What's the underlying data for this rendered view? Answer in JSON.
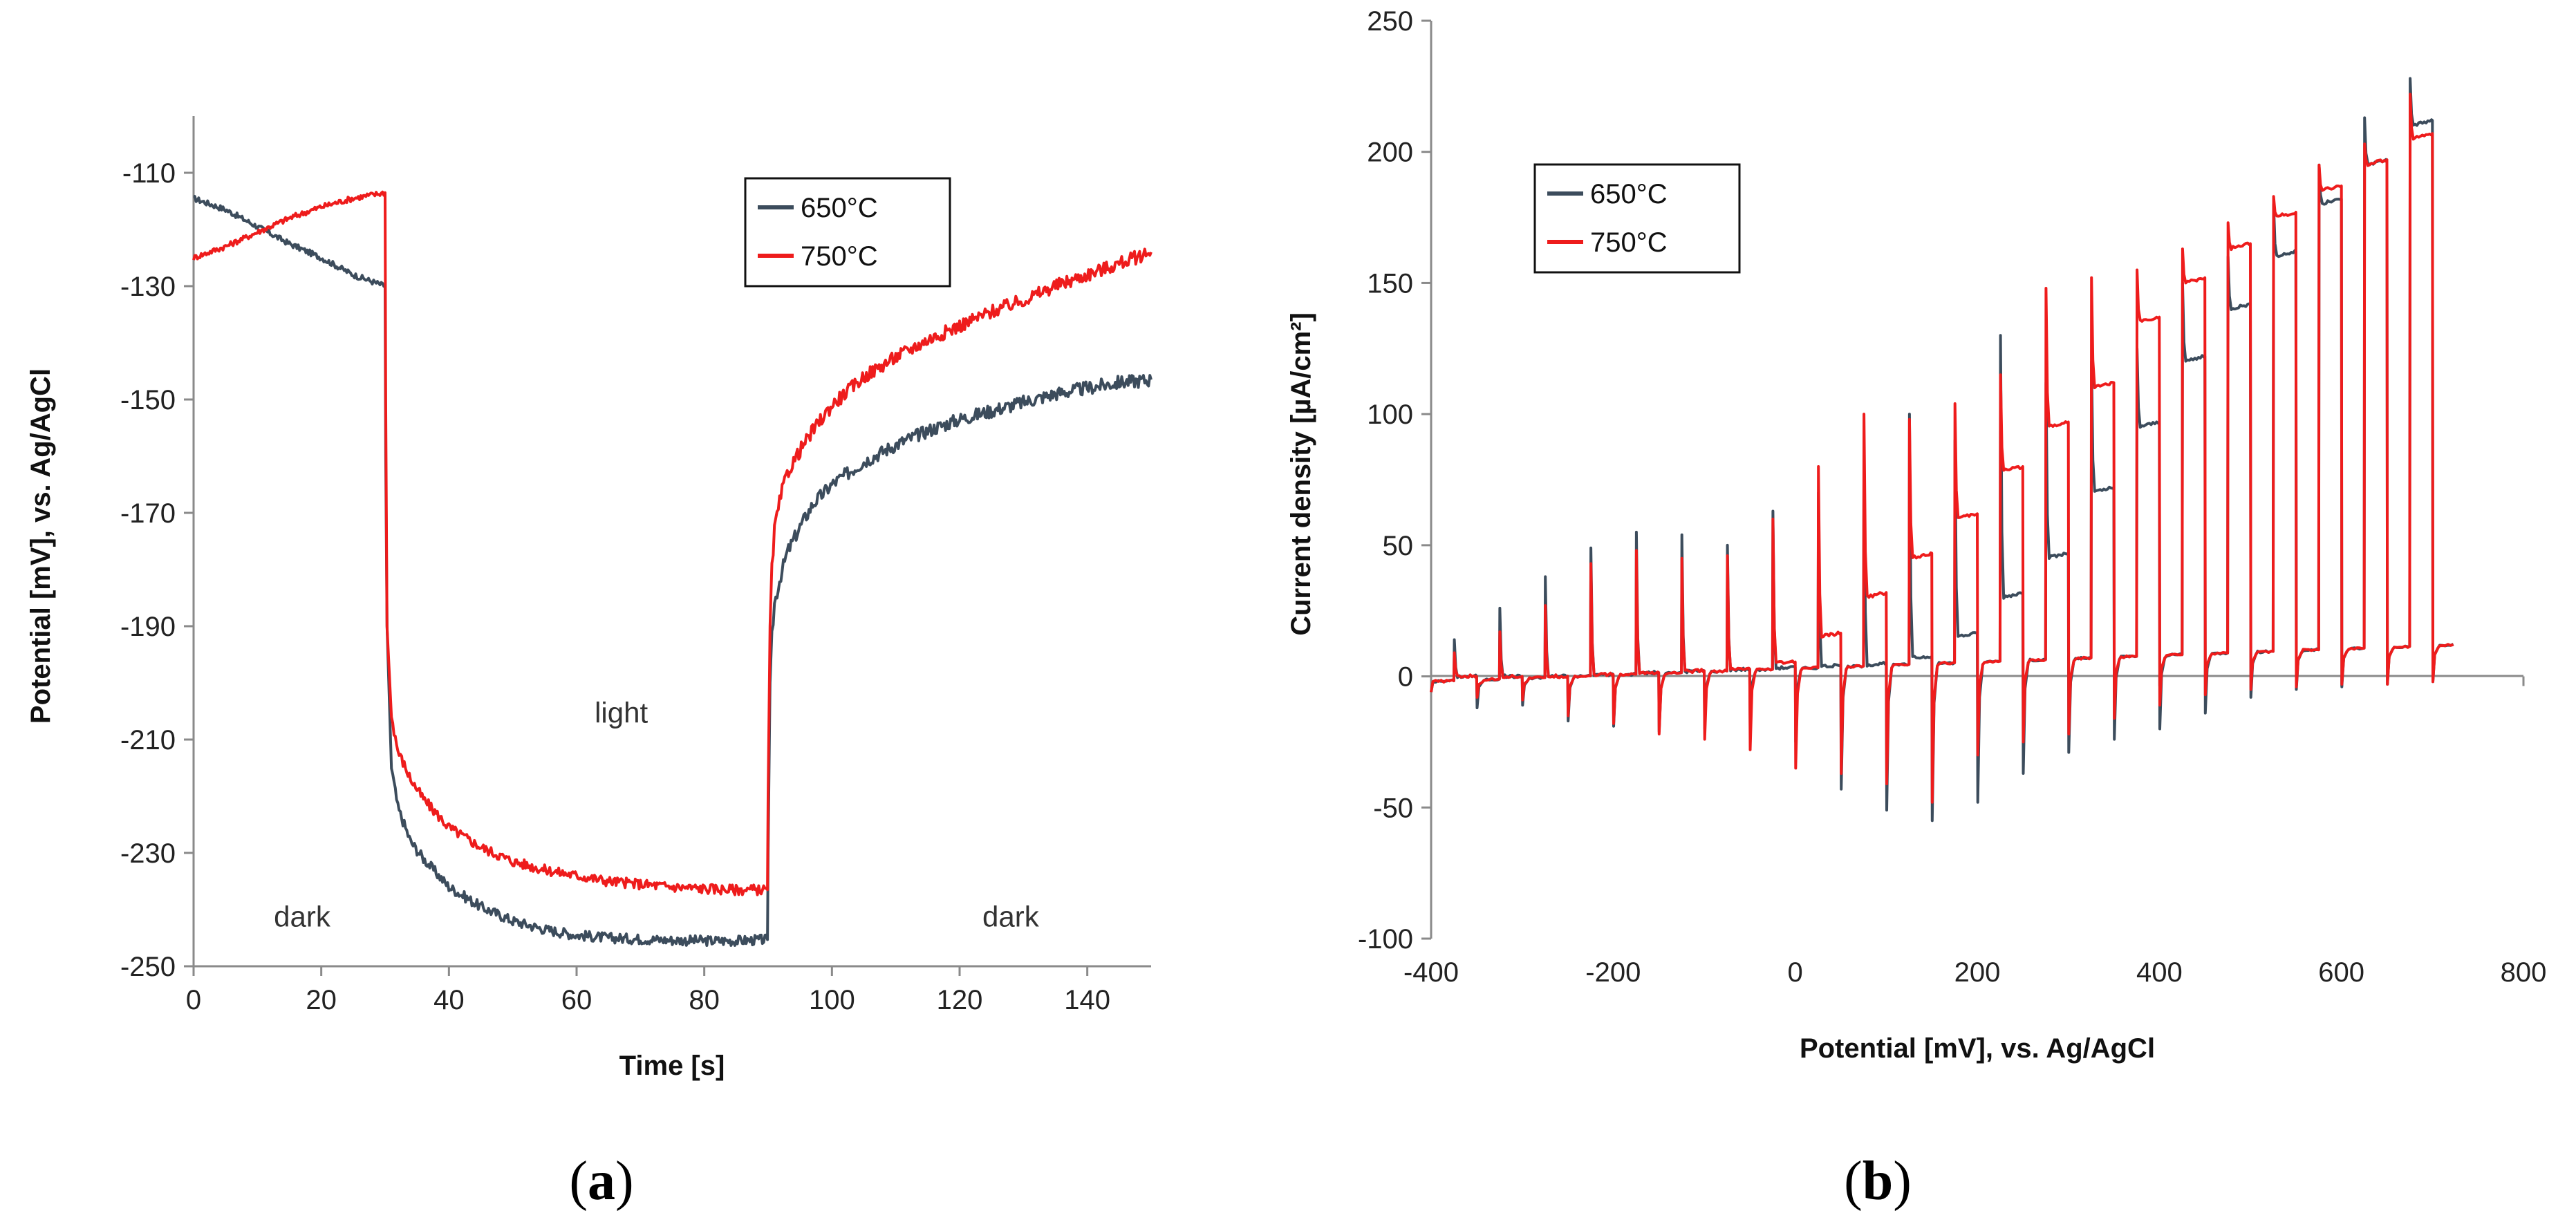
{
  "colors": {
    "series_650": "#3c4c5c",
    "series_750": "#ee1c1c",
    "axis": "#8a8a8a"
  },
  "chart_data": [
    {
      "id": "a",
      "type": "line",
      "panel_label": {
        "open": "(",
        "letter": "a",
        "close": ")"
      },
      "xlabel": "Time [s]",
      "ylabel": "Potential [mV], vs. Ag/AgCl",
      "xlim": [
        0,
        150
      ],
      "ylim": [
        -250,
        -100
      ],
      "xticks": [
        "0",
        "20",
        "40",
        "60",
        "80",
        "100",
        "120",
        "140"
      ],
      "xtick_values": [
        0,
        20,
        40,
        60,
        80,
        100,
        120,
        140
      ],
      "yticks": [
        "-110",
        "-130",
        "-150",
        "-170",
        "-190",
        "-210",
        "-230",
        "-250"
      ],
      "ytick_values": [
        -110,
        -130,
        -150,
        -170,
        -190,
        -210,
        -230,
        -250
      ],
      "grid": false,
      "legend_position": "top-right",
      "legend": [
        "650°C",
        "750°C"
      ],
      "annotations": [
        {
          "text": "dark",
          "x": 17,
          "y": -243
        },
        {
          "text": "light",
          "x": 67,
          "y": -207
        },
        {
          "text": "dark",
          "x": 128,
          "y": -243
        }
      ],
      "series": [
        {
          "name": "650°C",
          "x": [
            0,
            5,
            10,
            15,
            20,
            25,
            30,
            30.1,
            30.3,
            31,
            32,
            34,
            36,
            38,
            40,
            45,
            50,
            55,
            60,
            65,
            70,
            75,
            80,
            85,
            89.9,
            90,
            90.3,
            90.6,
            91,
            92,
            93,
            95,
            97,
            100,
            105,
            110,
            115,
            120,
            125,
            130,
            135,
            140,
            145,
            150
          ],
          "y": [
            -114.5,
            -116.5,
            -119.5,
            -122.5,
            -125,
            -128,
            -130,
            -160,
            -190,
            -215,
            -222,
            -228,
            -231,
            -233.5,
            -236,
            -239.5,
            -242,
            -243.5,
            -244.5,
            -245,
            -245.2,
            -245.4,
            -245.5,
            -245.5,
            -245.3,
            -230,
            -200,
            -192,
            -186,
            -181,
            -177,
            -172.5,
            -168.5,
            -165,
            -161,
            -158,
            -155.5,
            -153.5,
            -152,
            -150.5,
            -149,
            -148,
            -147,
            -146.5
          ]
        },
        {
          "name": "750°C",
          "x": [
            0,
            5,
            10,
            15,
            20,
            25,
            30,
            30.1,
            30.3,
            31,
            32,
            34,
            36,
            38,
            40,
            45,
            50,
            55,
            60,
            65,
            70,
            75,
            80,
            85,
            89.9,
            90,
            90.3,
            90.6,
            91,
            92,
            93,
            95,
            97,
            100,
            105,
            110,
            115,
            120,
            125,
            130,
            135,
            140,
            145,
            150
          ],
          "y": [
            -125,
            -123,
            -120.5,
            -118,
            -116,
            -114.5,
            -113.5,
            -150,
            -190,
            -206,
            -212,
            -217,
            -220.5,
            -223,
            -225.5,
            -229,
            -231.5,
            -233,
            -234,
            -235,
            -235.5,
            -236,
            -236.3,
            -236.5,
            -236.5,
            -220,
            -190,
            -180,
            -173,
            -167,
            -163,
            -159,
            -155.5,
            -151,
            -146,
            -142.5,
            -139.5,
            -137,
            -134.5,
            -132.5,
            -130,
            -128,
            -126,
            -124
          ]
        }
      ]
    },
    {
      "id": "b",
      "type": "line",
      "panel_label": {
        "open": "(",
        "letter": "b",
        "close": ")"
      },
      "xlabel": "Potential [mV], vs. Ag/AgCl",
      "ylabel": "Current density [µA/cm²]",
      "xlim": [
        -400,
        800
      ],
      "ylim": [
        -100,
        250
      ],
      "xticks": [
        "-400",
        "-200",
        "0",
        "200",
        "400",
        "600",
        "800"
      ],
      "xtick_values": [
        -400,
        -200,
        0,
        200,
        400,
        600,
        800
      ],
      "yticks": [
        "250",
        "200",
        "150",
        "100",
        "50",
        "0",
        "-50",
        "-100"
      ],
      "ytick_values": [
        250,
        200,
        150,
        100,
        50,
        0,
        -50,
        -100
      ],
      "grid": false,
      "legend_position": "top-left",
      "legend": [
        "650°C",
        "750°C"
      ],
      "pulse_model": {
        "description": "chopped-light linear sweep; light-on at potentials E_on, light-off at E_on + 25 mV",
        "sweep_start_mV": -400,
        "sweep_end_mV": 725,
        "dark_current_at_start": -2,
        "dark_current_at_end": 12,
        "series": [
          {
            "name": "650°C",
            "light_on_mV": [
              -375,
              -325,
              -275,
              -225,
              -175,
              -125,
              -75,
              -25,
              25,
              75,
              125,
              175,
              225,
              275,
              325,
              375,
              425,
              475,
              525,
              575,
              625,
              675
            ],
            "spike_up": [
              14,
              26,
              38,
              49,
              55,
              54,
              50,
              63,
              70,
              85,
              100,
              90,
              130,
              112,
              120,
              125,
              150,
              160,
              180,
              195,
              213,
              228
            ],
            "plateau": [
              0,
              0,
              0,
              0,
              0,
              0,
              1,
              1,
              2,
              3,
              7,
              15,
              30,
              45,
              70,
              95,
              120,
              140,
              160,
              180,
              195,
              210
            ],
            "spike_down": [
              -12,
              -11,
              -17,
              -19,
              -21,
              -20,
              -19,
              -25,
              -43,
              -51,
              -55,
              -48,
              -37,
              -29,
              -24,
              -20,
              -14,
              -8,
              -5,
              -4,
              -3,
              -2
            ]
          },
          {
            "name": "750°C",
            "light_on_mV": [
              -375,
              -325,
              -275,
              -225,
              -175,
              -125,
              -75,
              -25,
              25,
              75,
              125,
              175,
              225,
              275,
              325,
              375,
              425,
              475,
              525,
              575,
              625,
              675
            ],
            "spike_up": [
              9,
              17,
              27,
              43,
              48,
              45,
              46,
              60,
              80,
              100,
              98,
              104,
              115,
              148,
              152,
              155,
              163,
              173,
              183,
              195,
              203,
              222
            ],
            "plateau": [
              0,
              0,
              0,
              0,
              0,
              0,
              2,
              5,
              15,
              30,
              45,
              60,
              78,
              95,
              110,
              135,
              150,
              163,
              175,
              185,
              195,
              205
            ],
            "spike_down": [
              -8,
              -9,
              -15,
              -18,
              -22,
              -24,
              -28,
              -35,
              -37,
              -41,
              -48,
              -30,
              -25,
              -22,
              -16,
              -11,
              -7,
              -5,
              -4,
              -3,
              -3,
              -2
            ]
          }
        ]
      }
    }
  ]
}
